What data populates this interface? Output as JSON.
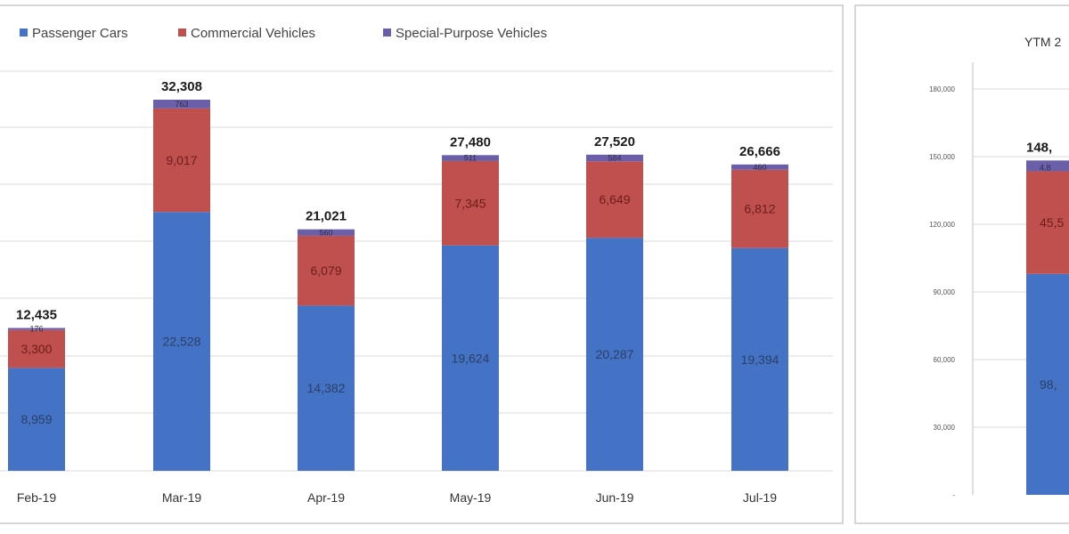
{
  "colors": {
    "passenger": "#4472c4",
    "commercial": "#c0504d",
    "special": "#6a5fa8"
  },
  "chart_data": [
    {
      "type": "bar",
      "stacked": true,
      "categories": [
        "Feb-19",
        "Mar-19",
        "Apr-19",
        "May-19",
        "Jun-19",
        "Jul-19"
      ],
      "series": [
        {
          "name": "Passenger Cars",
          "values": [
            8959,
            22528,
            14382,
            19624,
            20287,
            19394
          ]
        },
        {
          "name": "Commercial Vehicles",
          "values": [
            3300,
            9017,
            6079,
            7345,
            6649,
            6812
          ]
        },
        {
          "name": "Special-Purpose Vehicles",
          "values": [
            176,
            763,
            560,
            511,
            584,
            460
          ]
        }
      ],
      "totals": [
        "12,435",
        "32,308",
        "21,021",
        "27,480",
        "27,520",
        "26,666"
      ],
      "segment_labels": {
        "Passenger Cars": [
          "8,959",
          "22,528",
          "14,382",
          "19,624",
          "20,287",
          "19,394"
        ],
        "Commercial Vehicles": [
          "3,300",
          "9,017",
          "6,079",
          "7,345",
          "6,649",
          "6,812"
        ],
        "Special-Purpose Vehicles": [
          "176",
          "763",
          "560",
          "511",
          "584",
          "460"
        ]
      },
      "ylim": [
        0,
        36000
      ],
      "grid": true,
      "legend": "top-left"
    },
    {
      "type": "bar",
      "stacked": true,
      "title": "YTM 2",
      "y_ticks": [
        "-",
        "30,000",
        "60,000",
        "90,000",
        "120,000",
        "150,000",
        "180,000"
      ],
      "series": [
        {
          "name": "Passenger Cars",
          "values": [
            98000
          ]
        },
        {
          "name": "Commercial Vehicles",
          "values": [
            45500
          ]
        },
        {
          "name": "Special-Purpose Vehicles",
          "values": [
            4800
          ]
        }
      ],
      "total_label": "148,",
      "segment_labels": {
        "Passenger Cars": "98,",
        "Commercial Vehicles": "45,5",
        "Special-Purpose Vehicles": "4,8"
      },
      "ylim": [
        0,
        180000
      ],
      "grid": true
    }
  ]
}
